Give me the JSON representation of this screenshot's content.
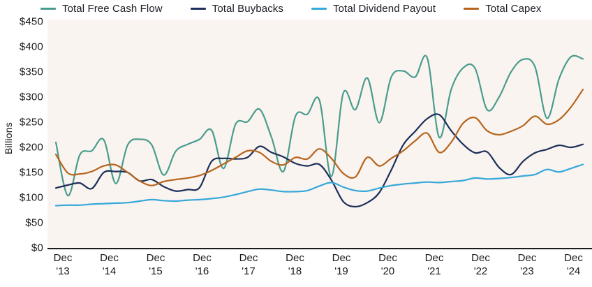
{
  "chart_data": {
    "type": "line",
    "title": "",
    "ylabel": "Billions",
    "xlabel": "",
    "ylim": [
      0,
      450
    ],
    "y_tick_labels": [
      "$450",
      "$400",
      "$350",
      "$300",
      "$250",
      "$200",
      "$150",
      "$100",
      "$50",
      "$0"
    ],
    "x_tick_month": "Dec",
    "x_tick_years": [
      "'13",
      "'14",
      "'15",
      "'16",
      "'17",
      "'18",
      "'19",
      "'20",
      "'21",
      "'22",
      "'23",
      "'24"
    ],
    "x_frequency": "quarterly",
    "x_range": "Dec 2013 to Dec 2024",
    "legend_position": "top",
    "grid": false,
    "plot_background": "#faf4f0",
    "axis_color": "#1c1c1c",
    "series": [
      {
        "name": "Total Free Cash Flow",
        "color": "#4a9c8d",
        "values": [
          210,
          104,
          185,
          193,
          215,
          128,
          205,
          216,
          205,
          145,
          192,
          206,
          216,
          234,
          158,
          246,
          251,
          276,
          220,
          152,
          262,
          266,
          294,
          142,
          308,
          275,
          338,
          249,
          340,
          352,
          340,
          378,
          220,
          315,
          358,
          357,
          275,
          300,
          350,
          375,
          360,
          258,
          336,
          380,
          376
        ]
      },
      {
        "name": "Total Buybacks",
        "color": "#1b2f5a",
        "values": [
          119,
          125,
          129,
          118,
          150,
          152,
          150,
          133,
          136,
          122,
          113,
          116,
          120,
          172,
          178,
          177,
          180,
          202,
          190,
          181,
          168,
          163,
          166,
          135,
          92,
          82,
          90,
          110,
          155,
          205,
          232,
          257,
          265,
          233,
          206,
          189,
          191,
          160,
          146,
          172,
          189,
          196,
          204,
          200,
          206
        ]
      },
      {
        "name": "Total Dividend Payout",
        "color": "#36a8d9",
        "values": [
          84,
          85,
          85,
          87,
          88,
          89,
          90,
          93,
          96,
          94,
          93,
          95,
          96,
          98,
          101,
          106,
          112,
          117,
          115,
          112,
          112,
          114,
          123,
          130,
          121,
          114,
          113,
          119,
          124,
          127,
          129,
          131,
          130,
          132,
          134,
          139,
          137,
          138,
          140,
          143,
          146,
          156,
          151,
          158,
          166
        ]
      },
      {
        "name": "Total Capex",
        "color": "#b5651e",
        "values": [
          186,
          149,
          147,
          152,
          163,
          165,
          150,
          133,
          124,
          132,
          136,
          139,
          144,
          154,
          167,
          180,
          193,
          190,
          172,
          165,
          180,
          177,
          197,
          178,
          148,
          141,
          180,
          163,
          178,
          193,
          213,
          228,
          190,
          210,
          248,
          259,
          233,
          225,
          232,
          243,
          262,
          246,
          255,
          280,
          315
        ]
      }
    ]
  }
}
